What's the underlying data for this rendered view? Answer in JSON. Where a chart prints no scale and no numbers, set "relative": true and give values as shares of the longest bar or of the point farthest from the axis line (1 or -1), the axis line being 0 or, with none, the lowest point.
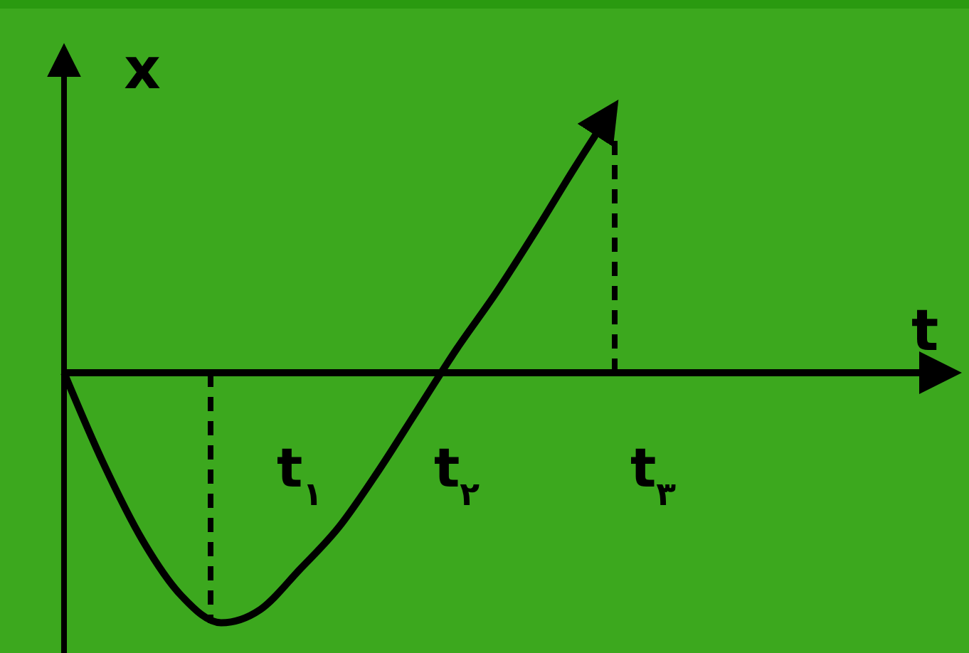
{
  "chart_data": {
    "type": "line",
    "relative": true,
    "xlabel": "t",
    "ylabel": "x",
    "categories": [
      null,
      null,
      null,
      null,
      null,
      null,
      "t$_{۱}$",
      null,
      null,
      null,
      "t$_{۲}$",
      null,
      null,
      null,
      null,
      "t$_{۳}$"
    ],
    "values": [
      0,
      -0.34,
      -0.63,
      -0.84,
      -0.94,
      -0.89,
      -0.74,
      -0.58,
      -0.37,
      -0.14,
      0.09,
      0.3,
      0.53,
      0.77,
      1,
      null
    ],
    "color": "#000000",
    "line_style": "solid"
  }
}
